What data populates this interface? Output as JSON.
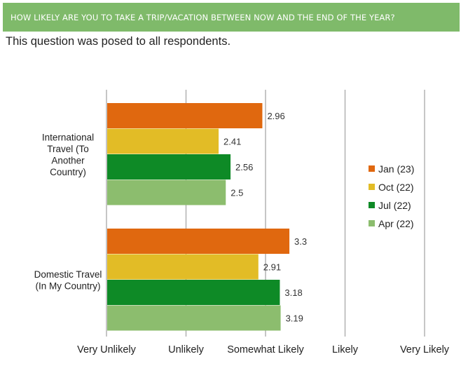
{
  "header": {
    "question": "HOW LIKELY ARE YOU TO TAKE A TRIP/VACATION BETWEEN NOW AND THE END OF THE YEAR?",
    "subtitle": "This question was posed to all respondents."
  },
  "chart_data": {
    "type": "bar",
    "orientation": "horizontal",
    "categories": [
      [
        "International",
        "Travel (To",
        "Another",
        "Country)"
      ],
      [
        "Domestic Travel",
        "(In My Country)"
      ]
    ],
    "series": [
      {
        "name": "Jan (23)",
        "color": "#e0680f",
        "values": [
          2.96,
          3.3
        ]
      },
      {
        "name": "Oct (22)",
        "color": "#e2bc26",
        "values": [
          2.41,
          2.91
        ]
      },
      {
        "name": "Jul (22)",
        "color": "#0e8a26",
        "values": [
          2.56,
          3.18
        ]
      },
      {
        "name": "Apr (22)",
        "color": "#8cbd6e",
        "values": [
          2.5,
          3.19
        ]
      }
    ],
    "xlim": [
      1,
      5
    ],
    "x_ticks": [
      1,
      2,
      3,
      4,
      5
    ],
    "x_tick_labels": [
      "Very Unlikely",
      "Unlikely",
      "Somewhat Likely",
      "Likely",
      "Very Likely"
    ],
    "grid": true,
    "legend_position": "right"
  }
}
